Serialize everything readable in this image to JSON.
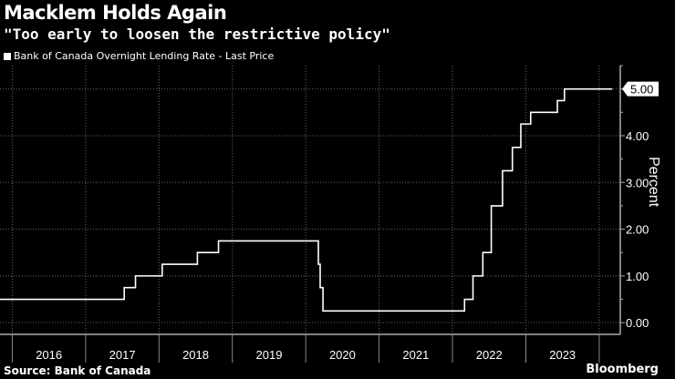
{
  "title": "Macklem Holds Again",
  "subtitle": "\"Too early to loosen the restrictive policy\"",
  "source": "Source: Bank of Canada",
  "brand": "Bloomberg",
  "chart_data": {
    "type": "line",
    "step": true,
    "series": [
      {
        "name": "Bank of Canada Overnight Lending Rate - Last Price",
        "color": "#ffffff",
        "points": [
          [
            "2015-11-01",
            0.5
          ],
          [
            "2017-07-12",
            0.75
          ],
          [
            "2017-09-06",
            1.0
          ],
          [
            "2018-01-17",
            1.25
          ],
          [
            "2018-07-11",
            1.5
          ],
          [
            "2018-10-24",
            1.75
          ],
          [
            "2020-03-04",
            1.25
          ],
          [
            "2020-03-13",
            0.75
          ],
          [
            "2020-03-27",
            0.25
          ],
          [
            "2022-03-02",
            0.5
          ],
          [
            "2022-04-13",
            1.0
          ],
          [
            "2022-06-01",
            1.5
          ],
          [
            "2022-07-13",
            2.5
          ],
          [
            "2022-09-07",
            3.25
          ],
          [
            "2022-10-26",
            3.75
          ],
          [
            "2022-12-07",
            4.25
          ],
          [
            "2023-01-25",
            4.5
          ],
          [
            "2023-06-07",
            4.75
          ],
          [
            "2023-07-12",
            5.0
          ],
          [
            "2024-03-06",
            5.0
          ]
        ]
      }
    ],
    "ylabel": "Percent",
    "ylim": [
      -0.25,
      5.5
    ],
    "yticks": [
      "0.00",
      "1.00",
      "2.00",
      "3.00",
      "4.00",
      "5.00"
    ],
    "xlim": [
      "2015-11-01",
      "2024-04-15"
    ],
    "xticks": [
      "2016",
      "2017",
      "2018",
      "2019",
      "2020",
      "2021",
      "2022",
      "2023"
    ],
    "last_value_label": "5.00",
    "grid": true,
    "background": "#000000"
  }
}
